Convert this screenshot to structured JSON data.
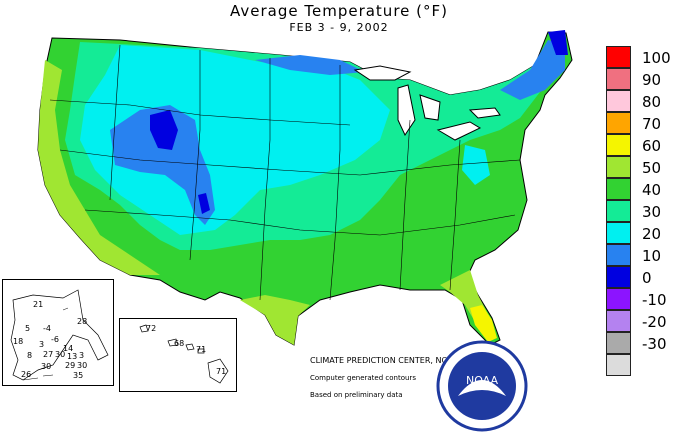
{
  "title": "Average Temperature (",
  "title_unit": "°F)",
  "subtitle": "FEB 3 - 9, 2002",
  "legend": [
    {
      "label": "100",
      "color": "#ff0000"
    },
    {
      "label": "90",
      "color": "#f07080"
    },
    {
      "label": "80",
      "color": "#ffc8dc"
    },
    {
      "label": "70",
      "color": "#ffa500"
    },
    {
      "label": "60",
      "color": "#f5f500"
    },
    {
      "label": "50",
      "color": "#a0e632"
    },
    {
      "label": "40",
      "color": "#32d232"
    },
    {
      "label": "30",
      "color": "#14eb96"
    },
    {
      "label": "20",
      "color": "#00f0f0"
    },
    {
      "label": "10",
      "color": "#2882f0"
    },
    {
      "label": "0",
      "color": "#0000e0"
    },
    {
      "label": "-10",
      "color": "#8c14ff"
    },
    {
      "label": "-20",
      "color": "#b482f0"
    },
    {
      "label": "-30",
      "color": "#aaaaaa"
    },
    {
      "label": "",
      "color": "#dcdcdc"
    }
  ],
  "alaska_values": [
    "21",
    "28",
    "5",
    "-4",
    "-6",
    "18",
    "3",
    "14",
    "8",
    "27",
    "30",
    "13",
    "3",
    "29",
    "30",
    "26",
    "30",
    "35"
  ],
  "hawaii_values": [
    "72",
    "68",
    "71",
    "71"
  ],
  "credits": {
    "line1": "CLIMATE PREDICTION CENTER, NOAA",
    "line2": "Computer generated contours",
    "line3": "Based on preliminary data"
  },
  "logo_text": "NOAA"
}
